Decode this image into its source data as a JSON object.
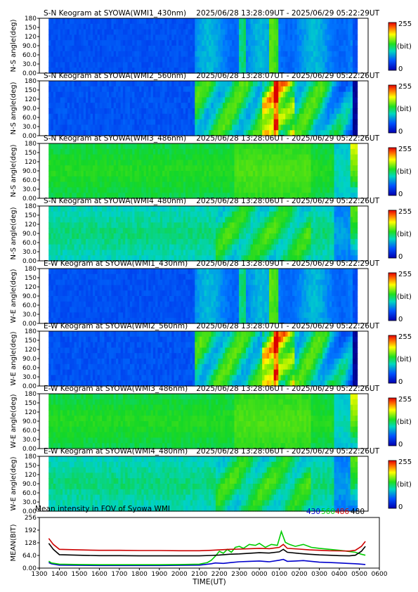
{
  "panels": [
    {
      "type": "heatmap",
      "dir": "S-N",
      "title_left": "S-N Keogram at SYOWA(WMI1_430nm)",
      "title_right": "2025/06/28 13:28:09UT - 2025/06/29 05:22:29UT",
      "ylabel": "N-S angle(deg)",
      "yticks": [
        "0.00",
        "30.0",
        "60.0",
        "90.0",
        "120",
        "150",
        "180"
      ],
      "ylim": [
        0,
        180
      ],
      "colorbar_ticks": [
        "0",
        "255"
      ],
      "colorbar_unit": "(bit)",
      "profile": "blue_430"
    },
    {
      "type": "heatmap",
      "dir": "S-N",
      "title_left": "S-N Keogram at SYOWA(WMI2_560nm)",
      "title_right": "2025/06/28 13:28:07UT - 2025/06/29 05:22:26UT",
      "ylabel": "N-S angle(deg)",
      "yticks": [
        "0.00",
        "30.0",
        "60.0",
        "90.0",
        "120",
        "150",
        "180"
      ],
      "ylim": [
        0,
        180
      ],
      "colorbar_ticks": [
        "0",
        "255"
      ],
      "colorbar_unit": "(bit)",
      "profile": "green_560"
    },
    {
      "type": "heatmap",
      "dir": "S-N",
      "title_left": "S-N Keogram at SYOWA(WMI3_486nm)",
      "title_right": "2025/06/28 13:28:06UT - 2025/06/29 05:22:26UT",
      "ylabel": "N-S angle(deg)",
      "yticks": [
        "0.00",
        "30.0",
        "60.0",
        "90.0",
        "120",
        "150",
        "180"
      ],
      "ylim": [
        0,
        180
      ],
      "colorbar_ticks": [
        "0",
        "255"
      ],
      "colorbar_unit": "(bit)",
      "profile": "bright_486"
    },
    {
      "type": "heatmap",
      "dir": "S-N",
      "title_left": "S-N Keogram at SYOWA(WMI4_480nm)",
      "title_right": "2025/06/28 13:28:06UT - 2025/06/29 05:22:26UT",
      "ylabel": "N-S angle(deg)",
      "yticks": [
        "0.00",
        "30.0",
        "60.0",
        "90.0",
        "120",
        "150",
        "180"
      ],
      "ylim": [
        0,
        180
      ],
      "colorbar_ticks": [
        "0",
        "255"
      ],
      "colorbar_unit": "(bit)",
      "profile": "mid_480"
    },
    {
      "type": "heatmap",
      "dir": "E-W",
      "title_left": "E-W Keogram at SYOWA(WMI1_430nm)",
      "title_right": "2025/06/28 13:28:09UT - 2025/06/29 05:22:29UT",
      "ylabel": "W-E angle(deg)",
      "yticks": [
        "0.00",
        "30.0",
        "60.0",
        "90.0",
        "120",
        "150",
        "180"
      ],
      "ylim": [
        0,
        180
      ],
      "colorbar_ticks": [
        "0",
        "255"
      ],
      "colorbar_unit": "(bit)",
      "profile": "blue_430"
    },
    {
      "type": "heatmap",
      "dir": "E-W",
      "title_left": "E-W Keogram at SYOWA(WMI2_560nm)",
      "title_right": "2025/06/28 13:28:07UT - 2025/06/29 05:22:26UT",
      "ylabel": "W-E angle(deg)",
      "yticks": [
        "0.00",
        "30.0",
        "60.0",
        "90.0",
        "120",
        "150",
        "180"
      ],
      "ylim": [
        0,
        180
      ],
      "colorbar_ticks": [
        "0",
        "255"
      ],
      "colorbar_unit": "(bit)",
      "profile": "green_560"
    },
    {
      "type": "heatmap",
      "dir": "E-W",
      "title_left": "E-W Keogram at SYOWA(WMI3_486nm)",
      "title_right": "2025/06/28 13:28:06UT - 2025/06/29 05:22:26UT",
      "ylabel": "W-E angle(deg)",
      "yticks": [
        "0.00",
        "30.0",
        "60.0",
        "90.0",
        "120",
        "150",
        "180"
      ],
      "ylim": [
        0,
        180
      ],
      "colorbar_ticks": [
        "0",
        "255"
      ],
      "colorbar_unit": "(bit)",
      "profile": "bright_486"
    },
    {
      "type": "heatmap",
      "dir": "E-W",
      "title_left": "E-W Keogram at SYOWA(WMI4_480nm)",
      "title_right": "2025/06/28 13:28:06UT - 2025/06/29 05:22:26UT",
      "ylabel": "W-E angle(deg)",
      "yticks": [
        "0.00",
        "30.0",
        "60.0",
        "90.0",
        "120",
        "150",
        "180"
      ],
      "ylim": [
        0,
        180
      ],
      "colorbar_ticks": [
        "0",
        "255"
      ],
      "colorbar_unit": "(bit)",
      "profile": "mid_480"
    }
  ],
  "mean_chart": {
    "type": "line",
    "title": "Mean intensity in FOV of Syowa WMI",
    "ylabel": "MEAN(BIT)",
    "xlabel": "TIME(UT)",
    "yticks": [
      "0.00",
      "64.0",
      "128",
      "192",
      "256"
    ],
    "ylim": [
      0,
      256
    ],
    "xlim": [
      13.0,
      30.0
    ],
    "xticks": [
      "1300",
      "1400",
      "1500",
      "1600",
      "1700",
      "1800",
      "1900",
      "2000",
      "2100",
      "2200",
      "2300",
      "0000",
      "0100",
      "0200",
      "0300",
      "0400",
      "0500",
      "0600"
    ],
    "legend": [
      {
        "label": "430",
        "color": "#0000cc"
      },
      {
        "label": "560",
        "color": "#00cc00"
      },
      {
        "label": "486",
        "color": "#cc0000"
      },
      {
        "label": "480",
        "color": "#000000"
      }
    ],
    "series": [
      {
        "name": "430",
        "color": "#0000cc",
        "x": [
          13.47,
          13.6,
          14.0,
          15.0,
          16.0,
          17.0,
          18.0,
          19.0,
          20.0,
          21.0,
          21.6,
          21.8,
          22.2,
          22.6,
          23.0,
          23.5,
          24.0,
          24.5,
          25.0,
          25.2,
          25.4,
          25.8,
          26.2,
          26.6,
          27.0,
          27.5,
          28.0,
          28.4,
          28.8,
          29.1,
          29.3
        ],
        "y": [
          28,
          22,
          15,
          14,
          13,
          13,
          13,
          13,
          14,
          15,
          22,
          26,
          24,
          28,
          32,
          34,
          36,
          32,
          40,
          44,
          34,
          36,
          38,
          34,
          30,
          28,
          26,
          24,
          22,
          20,
          18
        ]
      },
      {
        "name": "560",
        "color": "#00cc00",
        "x": [
          13.47,
          13.6,
          14.0,
          15.0,
          16.0,
          17.0,
          18.0,
          19.0,
          20.0,
          21.0,
          21.4,
          21.6,
          21.8,
          22.0,
          22.2,
          22.4,
          22.6,
          22.8,
          23.0,
          23.2,
          23.5,
          23.8,
          24.0,
          24.3,
          24.6,
          24.9,
          25.1,
          25.3,
          25.5,
          25.8,
          26.2,
          26.6,
          27.0,
          27.5,
          28.0,
          28.4,
          28.8,
          29.1,
          29.3
        ],
        "y": [
          35,
          26,
          20,
          18,
          17,
          17,
          17,
          17,
          18,
          20,
          28,
          40,
          60,
          85,
          75,
          95,
          80,
          105,
          110,
          100,
          120,
          115,
          125,
          105,
          120,
          115,
          185,
          130,
          120,
          110,
          120,
          105,
          100,
          95,
          90,
          85,
          80,
          70,
          65
        ]
      },
      {
        "name": "486",
        "color": "#cc0000",
        "x": [
          13.47,
          13.7,
          14.0,
          15.0,
          16.0,
          17.0,
          18.0,
          19.0,
          20.0,
          21.0,
          21.6,
          22.0,
          22.5,
          23.0,
          23.5,
          24.0,
          24.5,
          25.0,
          25.2,
          25.4,
          26.0,
          26.5,
          27.0,
          27.5,
          28.0,
          28.5,
          28.8,
          29.1,
          29.3
        ],
        "y": [
          150,
          120,
          95,
          92,
          90,
          90,
          89,
          89,
          88,
          88,
          90,
          92,
          95,
          96,
          98,
          100,
          98,
          105,
          120,
          100,
          96,
          92,
          90,
          88,
          87,
          86,
          90,
          110,
          135
        ]
      },
      {
        "name": "480",
        "color": "#000000",
        "x": [
          13.47,
          13.7,
          14.0,
          15.0,
          16.0,
          17.0,
          18.0,
          19.0,
          20.0,
          21.0,
          21.6,
          22.0,
          22.5,
          23.0,
          23.5,
          24.0,
          24.5,
          25.0,
          25.2,
          25.4,
          26.0,
          26.5,
          27.0,
          27.5,
          28.0,
          28.5,
          28.8,
          29.1,
          29.3
        ],
        "y": [
          125,
          95,
          68,
          65,
          63,
          63,
          62,
          62,
          62,
          62,
          64,
          66,
          70,
          72,
          75,
          78,
          76,
          82,
          95,
          80,
          74,
          70,
          67,
          65,
          63,
          62,
          65,
          85,
          110
        ]
      }
    ]
  },
  "colors": {
    "axis": "#000000",
    "background": "#ffffff",
    "legend_430": "#0000cc",
    "legend_560": "#00cc00",
    "legend_486": "#cc0000",
    "legend_480": "#000000"
  }
}
